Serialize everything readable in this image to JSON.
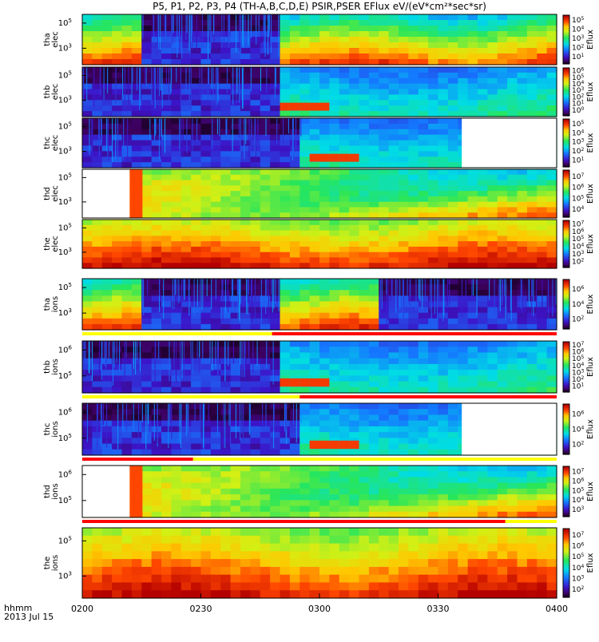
{
  "chart_data": {
    "type": "heatmap",
    "title": "P5, P1, P2, P3, P4 (TH-A,B,C,D,E) PSIR,PSER EFlux eV/(eV*cm²*sec*sr)",
    "x_ticks": [
      "0200",
      "0230",
      "0300",
      "0330",
      "0400"
    ],
    "x_tick_values": [
      120,
      150,
      180,
      210,
      240
    ],
    "x_range_minutes": [
      120,
      240
    ],
    "date_label_line1": "hhmm",
    "date_label_line2": "2013 Jul 15",
    "colorbar_label": "Eflux",
    "grid": false,
    "panels": [
      {
        "probe": "tha",
        "species": "elec",
        "ytick_exponents": [
          5,
          3
        ],
        "cbar_exponents": [
          5,
          4,
          3,
          2,
          1
        ],
        "data_start_min": 0,
        "data_gap_end_min": null,
        "bursts": [
          [
            135,
            170
          ]
        ],
        "detail": "fine",
        "flag_bar": null
      },
      {
        "probe": "thb",
        "species": "elec",
        "ytick_exponents": [
          5,
          3
        ],
        "cbar_exponents": [
          6,
          5,
          4,
          3,
          2,
          1,
          0
        ],
        "data_start_min": 0,
        "data_gap_end_min": null,
        "bursts": [
          [
            120,
            169
          ]
        ],
        "detail": "coarse",
        "flag_bar": null
      },
      {
        "probe": "thc",
        "species": "elec",
        "ytick_exponents": [
          5,
          3
        ],
        "cbar_exponents": [
          5,
          4,
          3,
          2,
          1
        ],
        "data_start_min": 0,
        "data_gap_end_min": 216,
        "bursts": [
          [
            120,
            176
          ]
        ],
        "detail": "coarse",
        "flag_bar": null
      },
      {
        "probe": "thd",
        "species": "elec",
        "ytick_exponents": [
          5,
          3
        ],
        "cbar_exponents": [
          7,
          6,
          5,
          4
        ],
        "data_start_min": 132,
        "data_gap_end_min": null,
        "bursts": [],
        "detail": "smooth",
        "flag_bar": null
      },
      {
        "probe": "the",
        "species": "elec",
        "ytick_exponents": [
          5,
          3
        ],
        "cbar_exponents": [
          7,
          6,
          5,
          4,
          3,
          2
        ],
        "data_start_min": 0,
        "data_gap_end_min": null,
        "bursts": [],
        "detail": "hot",
        "flag_bar": {
          "red_until_min": 157
        }
      },
      {
        "probe": "tha",
        "species": "ions",
        "ytick_exponents": [
          5,
          3
        ],
        "cbar_exponents": [
          6,
          4,
          2
        ],
        "data_start_min": 0,
        "data_gap_end_min": null,
        "bursts": [
          [
            135,
            170
          ],
          [
            195,
            240
          ]
        ],
        "detail": "fine",
        "flag_bar": {
          "red_after_min": 168
        }
      },
      {
        "probe": "thb",
        "species": "ions",
        "ytick_exponents": [
          6,
          5
        ],
        "cbar_exponents": [
          7,
          6,
          5,
          4,
          3,
          2,
          1
        ],
        "data_start_min": 0,
        "data_gap_end_min": null,
        "bursts": [
          [
            120,
            169
          ]
        ],
        "detail": "coarse",
        "flag_bar": {
          "red_after_min": 175
        }
      },
      {
        "probe": "thc",
        "species": "ions",
        "ytick_exponents": [
          6,
          5
        ],
        "cbar_exponents": [
          6,
          4,
          2
        ],
        "data_start_min": 0,
        "data_gap_end_min": 216,
        "bursts": [
          [
            120,
            176
          ]
        ],
        "detail": "coarse",
        "flag_bar": {
          "red_until_min": 148
        }
      },
      {
        "probe": "thd",
        "species": "ions",
        "ytick_exponents": [
          6,
          5
        ],
        "cbar_exponents": [
          7,
          6,
          5,
          4,
          3
        ],
        "data_start_min": 132,
        "data_gap_end_min": null,
        "bursts": [],
        "detail": "smooth",
        "flag_bar": {
          "red_until_min": 227
        }
      },
      {
        "probe": "the",
        "species": "ions",
        "ytick_exponents": [
          5,
          3
        ],
        "cbar_exponents": [
          7,
          6,
          5,
          4,
          3,
          2
        ],
        "data_start_min": 0,
        "data_gap_end_min": null,
        "bursts": [],
        "detail": "hot",
        "flag_bar": null
      }
    ]
  }
}
